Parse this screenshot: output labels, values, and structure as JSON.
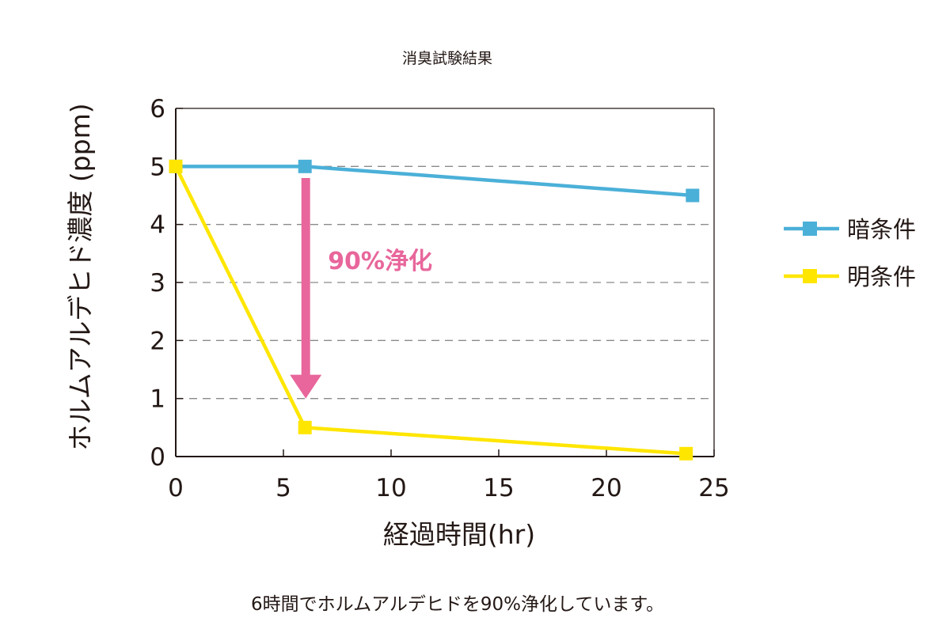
{
  "chart_data": {
    "type": "line",
    "title": "消臭試験結果",
    "xlabel": "経過時間(hr)",
    "ylabel": "ホルムアルデヒド濃度 (ppm)",
    "xlim": [
      0,
      25
    ],
    "ylim": [
      0,
      6
    ],
    "xticks": [
      0,
      5,
      10,
      15,
      20,
      25
    ],
    "yticks": [
      0,
      1,
      2,
      3,
      4,
      5,
      6
    ],
    "grid": "dashed horizontal",
    "legend_position": "right",
    "series": [
      {
        "name": "暗条件",
        "color": "#4bb0d8",
        "x": [
          0,
          6,
          24
        ],
        "y": [
          5.0,
          5.0,
          4.5
        ]
      },
      {
        "name": "明条件",
        "color": "#ffe600",
        "x": [
          0,
          6,
          23.7
        ],
        "y": [
          5.0,
          0.5,
          0.05
        ]
      }
    ],
    "annotation": {
      "text": "90%浄化",
      "color": "#e8669b",
      "x": 6,
      "y_from": 4.8,
      "y_to": 1.0
    },
    "caption": "6時間でホルムアルデヒドを90%浄化しています。"
  }
}
